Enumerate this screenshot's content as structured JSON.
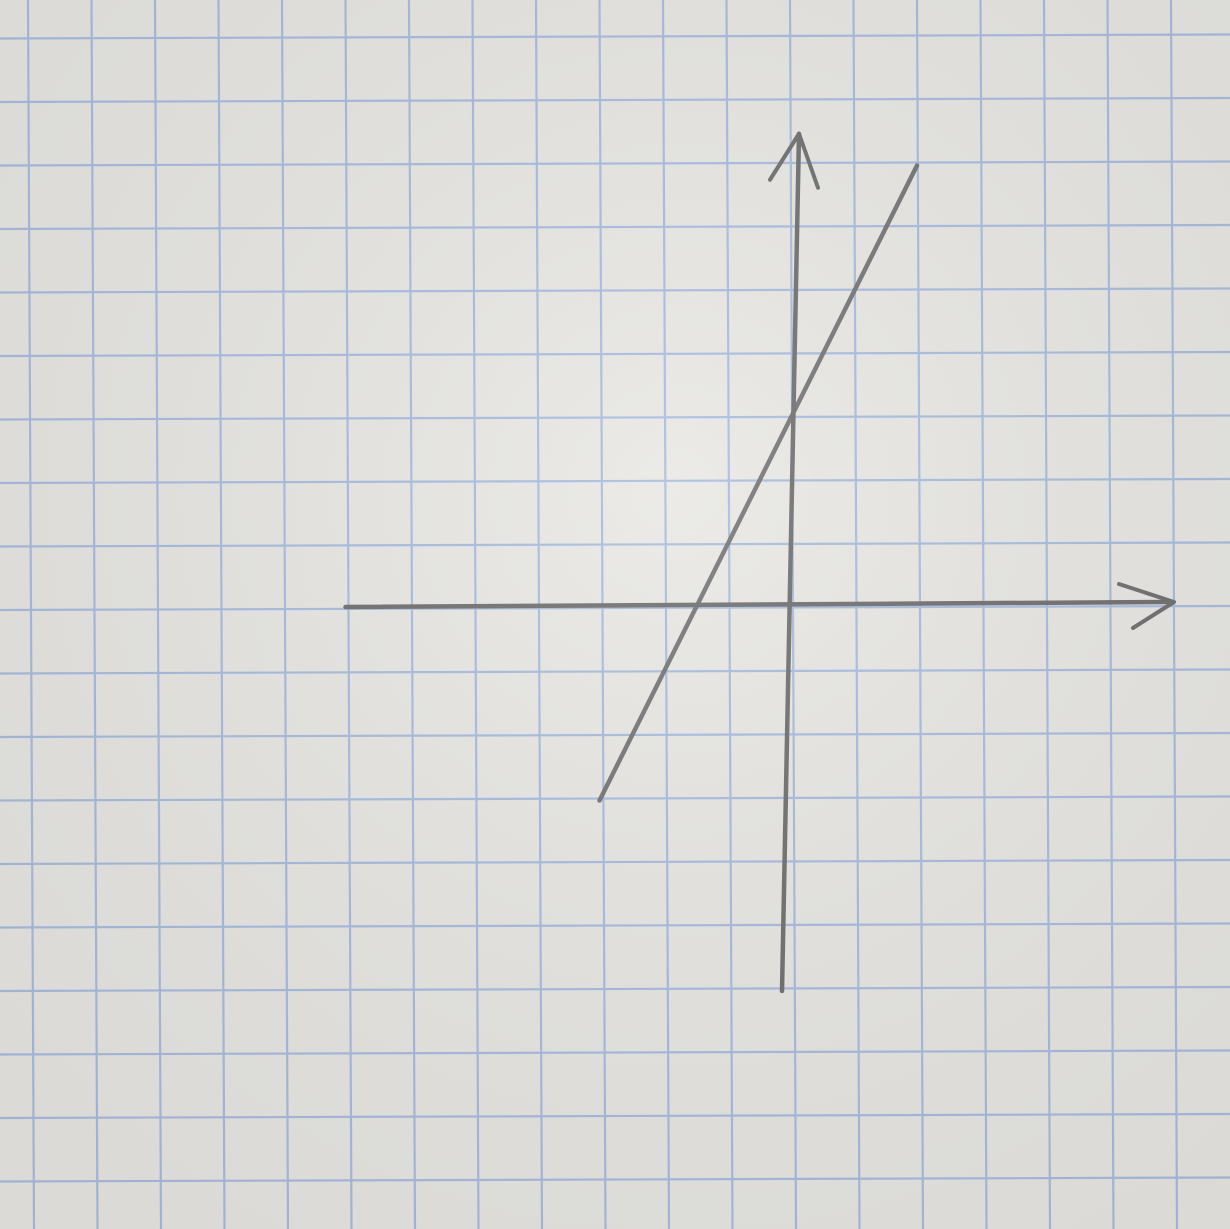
{
  "page": {
    "paper_color": "#e9e8e4",
    "grid_color": "#a9bde0",
    "pencil_color": "#6f6f6f"
  },
  "chart_data": {
    "type": "line",
    "title": "",
    "xlabel": "",
    "ylabel": "",
    "grid": true,
    "grid_unit": "squares",
    "xlim": [
      -7,
      6
    ],
    "ylim": [
      -6,
      7.5
    ],
    "axes_arrows": [
      "x",
      "y"
    ],
    "series": [
      {
        "x": [
          -3,
          2
        ],
        "y": [
          -3,
          7
        ]
      }
    ]
  }
}
